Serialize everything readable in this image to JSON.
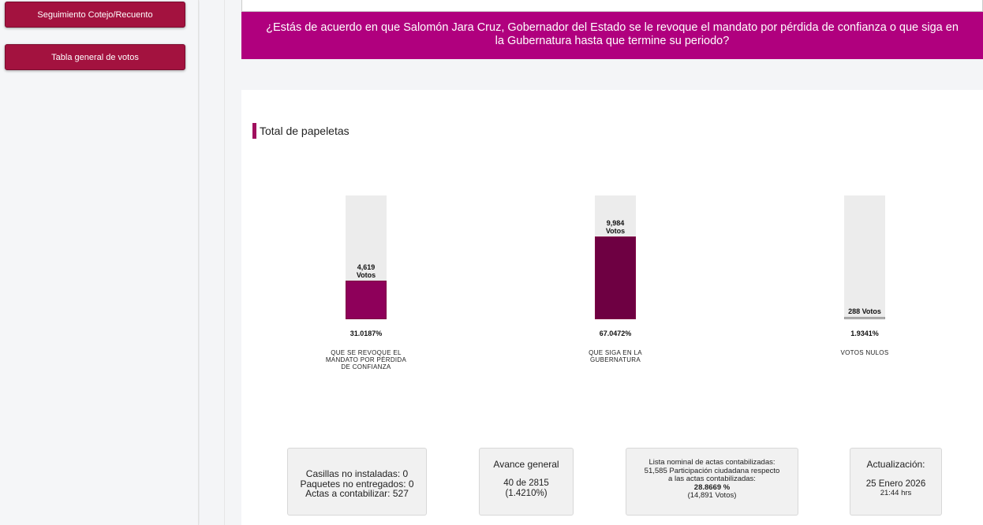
{
  "sidebar": {
    "items": [
      {
        "label": "Seguimiento Cotejo/Recuento"
      },
      {
        "label": "Tabla general de votos"
      }
    ]
  },
  "question": "¿Estás de acuerdo en que Salomón Jara Cruz, Gobernador del Estado se le revoque el mandato por pérdida de confianza o que siga en la Gubernatura hasta que termine su periodo?",
  "section_title": "Total de papeletas",
  "chart_data": {
    "type": "bar",
    "categories": [
      "QUE SE REVOQUE EL MANDATO POR PÉRDIDA DE CONFIANZA",
      "QUE SIGA EN LA GUBERNATURA",
      "VOTOS NULOS"
    ],
    "values": [
      31.0187,
      67.0472,
      1.9341
    ],
    "percent_labels": [
      "31.0187%",
      "67.0472%",
      "1.9341%"
    ],
    "vote_labels": [
      "4,619\nVotos",
      "9,984\nVotos",
      "288 Votos"
    ],
    "colors": [
      "#8e005a",
      "#6e0042",
      "#bdbdbd"
    ],
    "ylim": [
      0,
      100
    ]
  },
  "stats": {
    "casillas": {
      "line1": "Casillas no instaladas: 0",
      "line2": "Paquetes no entregados: 0",
      "line3": "Actas a contabilizar: 527"
    },
    "avance": {
      "title": "Avance general",
      "value": "40 de 2815",
      "percent": "(1.4210%)"
    },
    "lista": {
      "line1": "Lista nominal de actas contabilizadas:",
      "line2": "51,585 Participación ciudadana respecto",
      "line3": "a las actas contabilizadas:",
      "percent": "28.8669 %",
      "votes": "(14,891 Votos)"
    },
    "actualizacion": {
      "title": "Actualización:",
      "date": "25 Enero 2026",
      "time": "21:44 hrs"
    }
  }
}
